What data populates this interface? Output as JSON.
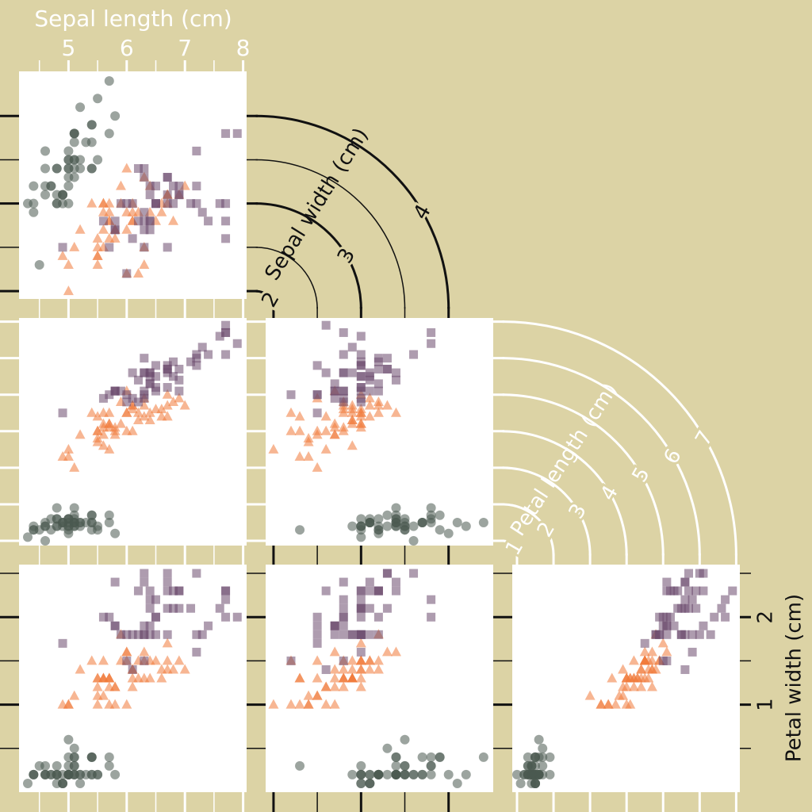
{
  "chart_data": {
    "type": "scatter-matrix",
    "background": "#dcd3a5",
    "axes": [
      {
        "label": "Sepal length (cm)",
        "lim": [
          4.15,
          8.06
        ],
        "ticks": [
          5,
          6,
          7,
          8
        ],
        "minor_ticks": [
          4.5,
          5.5,
          6.5,
          7.5
        ],
        "color": "#ffffff"
      },
      {
        "label": "Sepal width (cm)",
        "lim": [
          1.91,
          4.51
        ],
        "ticks": [
          2,
          3,
          4
        ],
        "minor_ticks": [
          2.5,
          3.5
        ],
        "color": "#111111"
      },
      {
        "label": "Petal length (cm)",
        "lim": [
          0.87,
          7.1
        ],
        "ticks": [
          1,
          2,
          3,
          4,
          5,
          6,
          7
        ],
        "minor_ticks": [],
        "color": "#ffffff"
      },
      {
        "label": "Petal width (cm)",
        "lim": [
          0,
          2.6
        ],
        "ticks": [
          1,
          2
        ],
        "minor_ticks": [
          0.5,
          1.5,
          2.5
        ],
        "color": "#111111"
      }
    ],
    "series": [
      {
        "color": "#4b5a50",
        "marker": "circle",
        "values": [
          [
            5.1,
            3.5,
            1.4,
            0.2
          ],
          [
            4.9,
            3.0,
            1.4,
            0.2
          ],
          [
            4.7,
            3.2,
            1.3,
            0.2
          ],
          [
            4.6,
            3.1,
            1.5,
            0.2
          ],
          [
            5.0,
            3.6,
            1.4,
            0.2
          ],
          [
            5.4,
            3.9,
            1.7,
            0.4
          ],
          [
            4.6,
            3.4,
            1.4,
            0.3
          ],
          [
            5.0,
            3.4,
            1.5,
            0.2
          ],
          [
            4.4,
            2.9,
            1.4,
            0.2
          ],
          [
            4.9,
            3.1,
            1.5,
            0.1
          ],
          [
            5.4,
            3.7,
            1.5,
            0.2
          ],
          [
            4.8,
            3.4,
            1.6,
            0.2
          ],
          [
            4.8,
            3.0,
            1.4,
            0.1
          ],
          [
            4.3,
            3.0,
            1.1,
            0.1
          ],
          [
            5.8,
            4.0,
            1.2,
            0.2
          ],
          [
            5.7,
            4.4,
            1.5,
            0.4
          ],
          [
            5.4,
            3.9,
            1.3,
            0.4
          ],
          [
            5.1,
            3.5,
            1.4,
            0.3
          ],
          [
            5.7,
            3.8,
            1.7,
            0.3
          ],
          [
            5.1,
            3.8,
            1.5,
            0.3
          ],
          [
            5.4,
            3.4,
            1.7,
            0.2
          ],
          [
            5.1,
            3.7,
            1.5,
            0.4
          ],
          [
            4.6,
            3.6,
            1.0,
            0.2
          ],
          [
            5.1,
            3.3,
            1.7,
            0.5
          ],
          [
            4.8,
            3.4,
            1.9,
            0.2
          ],
          [
            5.0,
            3.0,
            1.6,
            0.2
          ],
          [
            5.0,
            3.4,
            1.6,
            0.4
          ],
          [
            5.2,
            3.5,
            1.5,
            0.2
          ],
          [
            5.2,
            3.4,
            1.4,
            0.2
          ],
          [
            4.7,
            3.2,
            1.6,
            0.2
          ],
          [
            4.8,
            3.1,
            1.6,
            0.2
          ],
          [
            5.4,
            3.4,
            1.5,
            0.4
          ],
          [
            5.2,
            4.1,
            1.5,
            0.1
          ],
          [
            5.5,
            4.2,
            1.4,
            0.2
          ],
          [
            4.9,
            3.1,
            1.5,
            0.1
          ],
          [
            5.0,
            3.2,
            1.2,
            0.2
          ],
          [
            5.5,
            3.5,
            1.3,
            0.2
          ],
          [
            4.9,
            3.1,
            1.5,
            0.1
          ],
          [
            4.4,
            3.0,
            1.3,
            0.2
          ],
          [
            5.1,
            3.4,
            1.5,
            0.2
          ],
          [
            5.0,
            3.5,
            1.3,
            0.3
          ],
          [
            4.5,
            2.3,
            1.3,
            0.3
          ],
          [
            4.4,
            3.2,
            1.3,
            0.2
          ],
          [
            5.0,
            3.5,
            1.6,
            0.6
          ],
          [
            5.1,
            3.8,
            1.9,
            0.4
          ],
          [
            4.8,
            3.0,
            1.4,
            0.3
          ],
          [
            5.1,
            3.8,
            1.6,
            0.2
          ],
          [
            4.6,
            3.2,
            1.4,
            0.2
          ],
          [
            5.3,
            3.7,
            1.5,
            0.2
          ],
          [
            5.0,
            3.3,
            1.4,
            0.2
          ]
        ]
      },
      {
        "color": "#f07a3a",
        "marker": "triangle",
        "values": [
          [
            7.0,
            3.2,
            4.7,
            1.4
          ],
          [
            6.4,
            3.2,
            4.5,
            1.5
          ],
          [
            6.9,
            3.1,
            4.9,
            1.5
          ],
          [
            5.5,
            2.3,
            4.0,
            1.3
          ],
          [
            6.5,
            2.8,
            4.6,
            1.5
          ],
          [
            5.7,
            2.8,
            4.5,
            1.3
          ],
          [
            6.3,
            3.3,
            4.7,
            1.6
          ],
          [
            4.9,
            2.4,
            3.3,
            1.0
          ],
          [
            6.6,
            2.9,
            4.6,
            1.3
          ],
          [
            5.2,
            2.7,
            3.9,
            1.4
          ],
          [
            5.0,
            2.0,
            3.5,
            1.0
          ],
          [
            5.9,
            3.0,
            4.2,
            1.5
          ],
          [
            6.0,
            2.2,
            4.0,
            1.0
          ],
          [
            6.1,
            2.9,
            4.7,
            1.4
          ],
          [
            5.6,
            2.9,
            3.6,
            1.3
          ],
          [
            6.7,
            3.1,
            4.4,
            1.4
          ],
          [
            5.6,
            3.0,
            4.5,
            1.5
          ],
          [
            5.8,
            2.7,
            4.1,
            1.0
          ],
          [
            6.2,
            2.2,
            4.5,
            1.5
          ],
          [
            5.6,
            2.5,
            3.9,
            1.1
          ],
          [
            5.9,
            3.2,
            4.8,
            1.8
          ],
          [
            6.1,
            2.8,
            4.0,
            1.3
          ],
          [
            6.3,
            2.5,
            4.9,
            1.5
          ],
          [
            6.1,
            2.8,
            4.7,
            1.2
          ],
          [
            6.4,
            2.9,
            4.3,
            1.3
          ],
          [
            6.6,
            3.0,
            4.4,
            1.4
          ],
          [
            6.8,
            2.8,
            4.8,
            1.4
          ],
          [
            6.7,
            3.0,
            5.0,
            1.7
          ],
          [
            6.0,
            2.9,
            4.5,
            1.5
          ],
          [
            5.7,
            2.6,
            3.5,
            1.0
          ],
          [
            5.5,
            2.4,
            3.8,
            1.1
          ],
          [
            5.5,
            2.4,
            3.7,
            1.0
          ],
          [
            5.8,
            2.7,
            3.9,
            1.2
          ],
          [
            6.0,
            2.7,
            5.1,
            1.6
          ],
          [
            5.4,
            3.0,
            4.5,
            1.5
          ],
          [
            6.0,
            3.4,
            4.5,
            1.6
          ],
          [
            6.7,
            3.1,
            4.7,
            1.5
          ],
          [
            6.3,
            2.3,
            4.4,
            1.3
          ],
          [
            5.6,
            3.0,
            4.1,
            1.3
          ],
          [
            5.5,
            2.5,
            4.0,
            1.3
          ],
          [
            5.5,
            2.6,
            4.4,
            1.2
          ],
          [
            6.1,
            3.0,
            4.6,
            1.4
          ],
          [
            5.8,
            2.6,
            4.0,
            1.2
          ],
          [
            5.0,
            2.3,
            3.3,
            1.0
          ],
          [
            5.6,
            2.7,
            4.2,
            1.3
          ],
          [
            5.7,
            3.0,
            4.2,
            1.2
          ],
          [
            5.7,
            2.9,
            4.2,
            1.3
          ],
          [
            6.2,
            2.9,
            4.3,
            1.3
          ],
          [
            5.1,
            2.5,
            3.0,
            1.1
          ],
          [
            5.7,
            2.8,
            4.1,
            1.3
          ]
        ]
      },
      {
        "color": "#6b4a6e",
        "marker": "square",
        "values": [
          [
            6.3,
            3.3,
            6.0,
            2.5
          ],
          [
            5.8,
            2.7,
            5.1,
            1.9
          ],
          [
            7.1,
            3.0,
            5.9,
            2.1
          ],
          [
            6.3,
            2.9,
            5.6,
            1.8
          ],
          [
            6.5,
            3.0,
            5.8,
            2.2
          ],
          [
            7.6,
            3.0,
            6.6,
            2.1
          ],
          [
            4.9,
            2.5,
            4.5,
            1.7
          ],
          [
            7.3,
            2.9,
            6.3,
            1.8
          ],
          [
            6.7,
            2.5,
            5.8,
            1.8
          ],
          [
            7.2,
            3.6,
            6.1,
            2.5
          ],
          [
            6.5,
            3.2,
            5.1,
            2.0
          ],
          [
            6.4,
            2.7,
            5.3,
            1.9
          ],
          [
            6.8,
            3.0,
            5.5,
            2.1
          ],
          [
            5.7,
            2.5,
            5.0,
            2.0
          ],
          [
            5.8,
            2.8,
            5.1,
            2.4
          ],
          [
            6.4,
            3.2,
            5.3,
            2.3
          ],
          [
            6.5,
            3.0,
            5.5,
            1.8
          ],
          [
            7.7,
            3.8,
            6.7,
            2.2
          ],
          [
            7.7,
            2.6,
            6.9,
            2.3
          ],
          [
            6.0,
            2.2,
            5.0,
            1.5
          ],
          [
            6.9,
            3.2,
            5.7,
            2.3
          ],
          [
            5.6,
            2.8,
            4.9,
            2.0
          ],
          [
            7.7,
            2.8,
            6.7,
            2.0
          ],
          [
            6.3,
            2.7,
            4.9,
            1.8
          ],
          [
            6.7,
            3.3,
            5.7,
            2.1
          ],
          [
            7.2,
            3.2,
            6.0,
            1.8
          ],
          [
            6.2,
            2.8,
            4.8,
            1.8
          ],
          [
            6.1,
            3.0,
            4.9,
            1.8
          ],
          [
            6.4,
            2.8,
            5.6,
            2.1
          ],
          [
            7.2,
            3.0,
            5.8,
            1.6
          ],
          [
            7.4,
            2.8,
            6.1,
            1.9
          ],
          [
            7.9,
            3.8,
            6.4,
            2.0
          ],
          [
            6.4,
            2.8,
            5.6,
            2.2
          ],
          [
            6.3,
            2.8,
            5.1,
            1.5
          ],
          [
            6.1,
            2.6,
            5.6,
            1.4
          ],
          [
            7.7,
            3.0,
            6.1,
            2.3
          ],
          [
            6.3,
            3.4,
            5.6,
            2.4
          ],
          [
            6.4,
            3.1,
            5.5,
            1.8
          ],
          [
            6.0,
            3.0,
            4.8,
            1.8
          ],
          [
            6.9,
            3.1,
            5.4,
            2.1
          ],
          [
            6.7,
            3.1,
            5.6,
            2.4
          ],
          [
            6.9,
            3.1,
            5.1,
            2.3
          ],
          [
            5.8,
            2.7,
            5.1,
            1.9
          ],
          [
            6.8,
            3.2,
            5.9,
            2.3
          ],
          [
            6.7,
            3.3,
            5.7,
            2.5
          ],
          [
            6.7,
            3.0,
            5.2,
            2.3
          ],
          [
            6.3,
            2.5,
            5.0,
            1.9
          ],
          [
            6.5,
            3.0,
            5.2,
            2.0
          ],
          [
            6.2,
            3.4,
            5.4,
            2.3
          ],
          [
            5.9,
            3.0,
            5.1,
            1.8
          ]
        ]
      }
    ]
  }
}
